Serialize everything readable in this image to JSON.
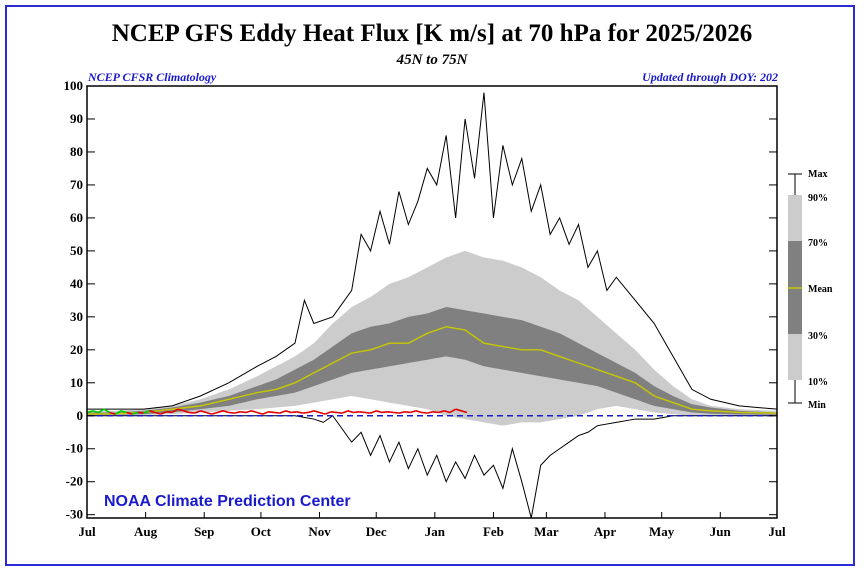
{
  "chart_data": {
    "type": "area",
    "title": "NCEP GFS Eddy Heat Flux [K m/s] at 70 hPa for 2025/2026",
    "subtitle": "45N to 75N",
    "note_left": "NCEP CFSR Climatology",
    "note_right": "Updated through DOY: 202",
    "credit": "NOAA Climate Prediction Center",
    "ylim": [
      -31,
      100
    ],
    "yticks": [
      -30,
      -20,
      -10,
      0,
      10,
      20,
      30,
      40,
      50,
      60,
      70,
      80,
      90,
      100
    ],
    "months": [
      "Jul",
      "Aug",
      "Sep",
      "Oct",
      "Nov",
      "Dec",
      "Jan",
      "Feb",
      "Mar",
      "Apr",
      "May",
      "Jun",
      "Jul"
    ],
    "x_unit": "day since Jul 1",
    "xlim": [
      0,
      365
    ],
    "legend": {
      "labels": [
        "Max",
        "90%",
        "70%",
        "Mean",
        "30%",
        "10%",
        "Min"
      ],
      "colors": {
        "light": "#cccccc",
        "dark": "#808080",
        "mean": "#c8c800"
      }
    },
    "colors": {
      "band_10_90": "#cccccc",
      "band_30_70": "#808080",
      "mean": "#c8c800",
      "zero_line": "#1a1acc",
      "minmax": "#000000",
      "frame": "#2b2bd6"
    },
    "series": [
      {
        "name": "Max",
        "x": [
          0,
          15,
          30,
          45,
          60,
          75,
          90,
          100,
          110,
          115,
          120,
          130,
          140,
          145,
          150,
          155,
          160,
          165,
          170,
          175,
          180,
          185,
          190,
          195,
          200,
          205,
          210,
          215,
          220,
          225,
          230,
          235,
          240,
          245,
          250,
          255,
          260,
          265,
          270,
          275,
          280,
          290,
          300,
          310,
          320,
          330,
          345,
          365
        ],
        "values": [
          2,
          2,
          2,
          3,
          6,
          10,
          15,
          18,
          22,
          35,
          28,
          30,
          38,
          55,
          50,
          62,
          52,
          68,
          58,
          65,
          75,
          70,
          85,
          60,
          90,
          72,
          98,
          60,
          82,
          70,
          78,
          62,
          70,
          55,
          60,
          52,
          58,
          45,
          50,
          38,
          42,
          35,
          28,
          18,
          8,
          5,
          3,
          2
        ]
      },
      {
        "name": "90%",
        "x": [
          0,
          15,
          30,
          45,
          60,
          75,
          90,
          100,
          110,
          120,
          130,
          140,
          150,
          160,
          170,
          180,
          190,
          200,
          210,
          220,
          230,
          240,
          250,
          260,
          270,
          280,
          290,
          300,
          310,
          320,
          330,
          345,
          365
        ],
        "values": [
          1.5,
          1.5,
          2,
          3,
          5,
          8,
          12,
          15,
          18,
          22,
          28,
          33,
          36,
          40,
          42,
          45,
          48,
          50,
          48,
          47,
          45,
          42,
          38,
          35,
          30,
          25,
          20,
          14,
          9,
          5,
          3,
          2,
          1.5
        ]
      },
      {
        "name": "70%",
        "x": [
          0,
          15,
          30,
          45,
          60,
          75,
          90,
          100,
          110,
          120,
          130,
          140,
          150,
          160,
          170,
          180,
          190,
          200,
          210,
          220,
          230,
          240,
          250,
          260,
          270,
          280,
          290,
          300,
          310,
          320,
          330,
          345,
          365
        ],
        "values": [
          1,
          1,
          1.5,
          2.5,
          4,
          6,
          9,
          11,
          14,
          17,
          21,
          25,
          27,
          28,
          30,
          31,
          33,
          32,
          31,
          30,
          29,
          27,
          25,
          22,
          19,
          16,
          13,
          9,
          6,
          3.5,
          2.5,
          1.5,
          1
        ]
      },
      {
        "name": "Mean",
        "x": [
          0,
          15,
          30,
          45,
          60,
          75,
          90,
          100,
          110,
          120,
          130,
          140,
          150,
          160,
          170,
          180,
          190,
          200,
          210,
          220,
          230,
          240,
          250,
          260,
          270,
          280,
          290,
          300,
          310,
          320,
          330,
          345,
          365
        ],
        "values": [
          0.5,
          0.6,
          1,
          2,
          3,
          5,
          7,
          8,
          10,
          13,
          16,
          19,
          20,
          22,
          22,
          25,
          27,
          26,
          22,
          21,
          20,
          20,
          18,
          16,
          14,
          12,
          10,
          6,
          4,
          2,
          1.5,
          1,
          0.8
        ]
      },
      {
        "name": "30%",
        "x": [
          0,
          15,
          30,
          45,
          60,
          75,
          90,
          100,
          110,
          120,
          130,
          140,
          150,
          160,
          170,
          180,
          190,
          200,
          210,
          220,
          230,
          240,
          250,
          260,
          270,
          280,
          290,
          300,
          310,
          320,
          330,
          345,
          365
        ],
        "values": [
          0.2,
          0.3,
          0.5,
          1,
          2,
          3,
          5,
          6,
          7,
          9,
          11,
          13,
          14,
          15,
          16,
          17,
          18,
          17,
          15,
          14,
          13,
          12,
          11,
          10,
          9,
          7,
          5,
          3,
          2,
          1,
          0.6,
          0.4,
          0.3
        ]
      },
      {
        "name": "10%",
        "x": [
          0,
          15,
          30,
          45,
          60,
          75,
          90,
          100,
          110,
          120,
          130,
          140,
          150,
          160,
          170,
          180,
          190,
          200,
          210,
          220,
          230,
          240,
          250,
          260,
          270,
          280,
          290,
          300,
          310,
          320,
          330,
          345,
          365
        ],
        "values": [
          -0.2,
          0,
          0.2,
          0.5,
          1,
          1.5,
          2,
          2.5,
          3,
          4,
          5,
          6,
          5,
          4,
          3,
          2,
          0,
          -1,
          -2,
          -3,
          -2,
          -2,
          -1,
          0,
          2,
          3,
          2,
          1,
          0.5,
          0,
          0,
          0,
          0
        ]
      },
      {
        "name": "Min",
        "x": [
          0,
          15,
          30,
          45,
          60,
          75,
          90,
          100,
          110,
          120,
          125,
          130,
          140,
          145,
          150,
          155,
          160,
          165,
          170,
          175,
          180,
          185,
          190,
          195,
          200,
          205,
          210,
          215,
          220,
          225,
          230,
          235,
          240,
          245,
          250,
          255,
          260,
          265,
          270,
          280,
          290,
          300,
          310,
          320,
          330,
          345,
          365
        ],
        "values": [
          0,
          0,
          0,
          0,
          0,
          0,
          0,
          0,
          0,
          -1,
          -2,
          0,
          -8,
          -5,
          -12,
          -6,
          -14,
          -8,
          -16,
          -10,
          -18,
          -12,
          -20,
          -14,
          -19,
          -12,
          -18,
          -15,
          -22,
          -10,
          -20,
          -31,
          -15,
          -12,
          -10,
          -8,
          -6,
          -5,
          -3,
          -2,
          -1,
          -1,
          0,
          0,
          0,
          0,
          0
        ]
      },
      {
        "name": "2025/2026",
        "x": [
          0,
          3,
          6,
          9,
          12,
          15,
          18,
          21,
          24,
          27,
          30,
          33,
          36,
          39,
          42,
          45,
          48,
          51,
          54,
          57,
          60,
          63,
          66,
          69,
          72,
          75,
          78,
          81,
          84,
          87,
          90,
          93,
          96,
          99,
          102,
          105,
          108,
          111,
          114,
          117,
          120,
          123,
          126,
          129,
          132,
          135,
          138,
          141,
          144,
          147,
          150,
          153,
          156,
          159,
          162,
          165,
          168,
          171,
          174,
          177,
          180,
          183,
          186,
          189,
          192,
          195,
          198,
          201
        ],
        "values": [
          1,
          1.5,
          1,
          2,
          1,
          0.5,
          1.5,
          1,
          0.5,
          1,
          0.8,
          1.5,
          1,
          0.5,
          1.2,
          1,
          2,
          1.5,
          1,
          0.8,
          1.5,
          1,
          0.5,
          1,
          1.5,
          1,
          0.8,
          1.2,
          1,
          1.5,
          1,
          0.5,
          1.2,
          1,
          0.8,
          1.5,
          1,
          1.2,
          0.8,
          1,
          1.5,
          1,
          0.5,
          1.2,
          1,
          0.8,
          1.5,
          1,
          1.2,
          1,
          0.8,
          1.5,
          1,
          1.2,
          1,
          0.8,
          1.2,
          1,
          1.5,
          1,
          0.8,
          1.2,
          1,
          1.5,
          1,
          2,
          1.5,
          1
        ]
      }
    ]
  }
}
